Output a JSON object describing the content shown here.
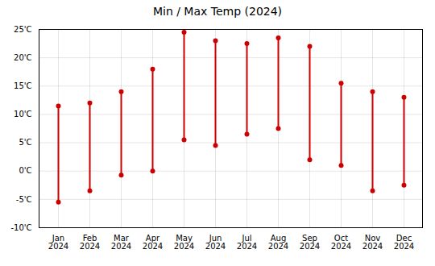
{
  "chart_data": {
    "type": "range",
    "title": "Min / Max Temp (2024)",
    "categories": [
      "Jan\n2024",
      "Feb\n2024",
      "Mar\n2024",
      "Apr\n2024",
      "May\n2024",
      "Jun\n2024",
      "Jul\n2024",
      "Aug\n2024",
      "Sep\n2024",
      "Oct\n2024",
      "Nov\n2024",
      "Dec\n2024"
    ],
    "min_values": [
      -5.5,
      -3.5,
      -0.7,
      0.0,
      5.5,
      4.5,
      6.5,
      7.5,
      2.0,
      1.0,
      -3.5,
      -2.5
    ],
    "max_values": [
      11.5,
      12.0,
      14.0,
      18.0,
      24.5,
      23.0,
      22.5,
      23.5,
      22.0,
      15.5,
      14.0,
      13.0
    ],
    "color": "#cc0000",
    "ylim": [
      -10,
      25
    ],
    "yticks": [
      {
        "value": -10,
        "label": "-10'C"
      },
      {
        "value": -5,
        "label": "-5'C"
      },
      {
        "value": 0,
        "label": "0'C"
      },
      {
        "value": 5,
        "label": "5'C"
      },
      {
        "value": 10,
        "label": "10'C"
      },
      {
        "value": 15,
        "label": "15'C"
      },
      {
        "value": 20,
        "label": "20'C"
      },
      {
        "value": 25,
        "label": "25'C"
      }
    ],
    "grid": true
  }
}
